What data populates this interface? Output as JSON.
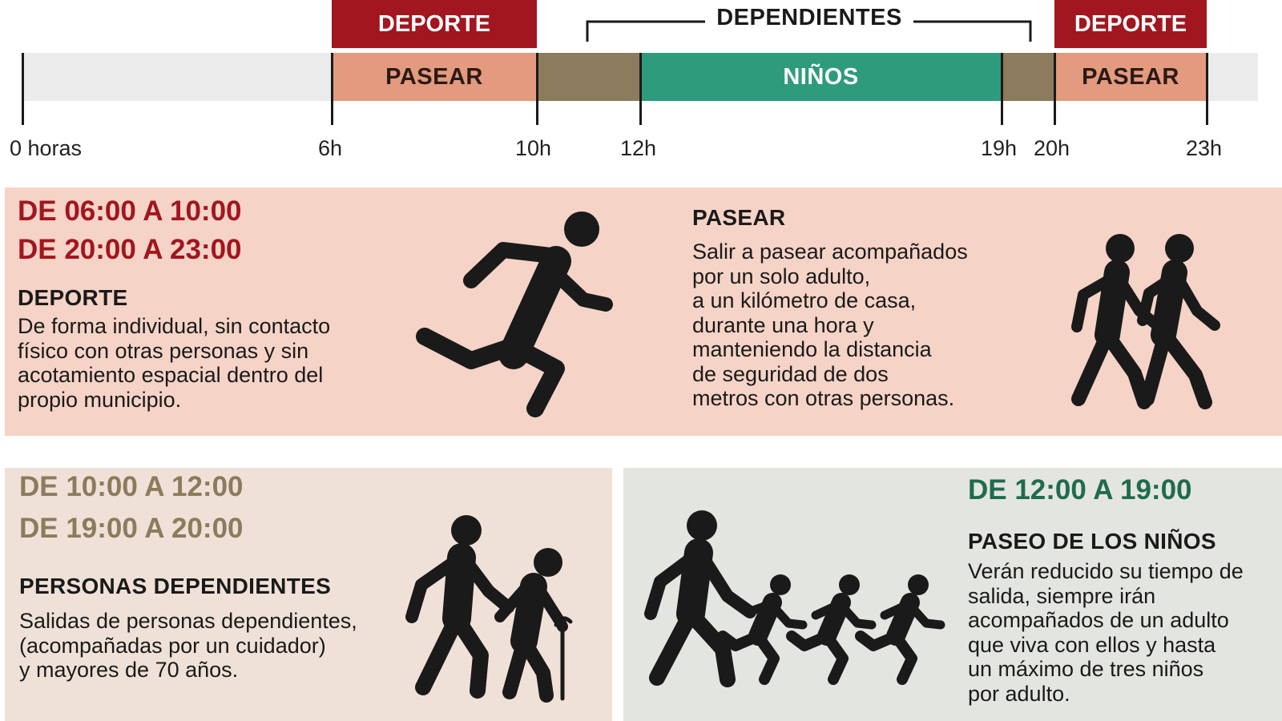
{
  "timeline": {
    "top_labels": {
      "deporte_left": "DEPORTE",
      "dependientes": "DEPENDIENTES",
      "deporte_right": "DEPORTE"
    },
    "segments": {
      "pasear_left": "PASEAR",
      "ninos": "NIÑOS",
      "pasear_right": "PASEAR"
    },
    "ticks": [
      "0 horas",
      "6h",
      "10h",
      "12h",
      "19h",
      "20h",
      "23h"
    ],
    "colors": {
      "deporte": "#a1161f",
      "pasear": "#e39a7f",
      "dependientes": "#8c7b5c",
      "ninos": "#2e9b7c",
      "empty": "#ebebeb"
    }
  },
  "deporte_pasear": {
    "time1": "DE 06:00 A 10:00",
    "time2": "DE 20:00 A 23:00",
    "deporte_heading": "DEPORTE",
    "deporte_text": "De forma individual, sin contacto\nfísico con otras personas y sin\nacotamiento espacial dentro del\npropio municipio.",
    "pasear_heading": "PASEAR",
    "pasear_text": "Salir a pasear acompañados\npor un solo adulto,\na un kilómetro de casa,\ndurante una hora y\nmanteniendo la distancia\nde seguridad de dos\nmetros con otras personas.",
    "bg": "#f5d3c6",
    "time_color": "#a1161f"
  },
  "dependientes": {
    "time1": "DE 10:00 A 12:00",
    "time2": "DE 19:00 A 20:00",
    "heading": "PERSONAS DEPENDIENTES",
    "text": "Salidas de personas dependientes,\n(acompañadas por un cuidador)\ny mayores de 70 años.",
    "bg": "#f0e1d8",
    "time_color": "#8c7b5c"
  },
  "ninos": {
    "time": "DE 12:00 A 19:00",
    "heading": "PASEO DE LOS NIÑOS",
    "text": "Verán reducido su tiempo de\nsalida, siempre irán\nacompañados de un adulto\nque viva con ellos y hasta\nun máximo de tres niños\npor adulto.",
    "bg": "#e3e5e1",
    "time_color": "#1f6b4e"
  },
  "icons": [
    "runner-icon",
    "walking-pair-icon",
    "elderly-with-cane-icon",
    "adult-with-children-icon"
  ]
}
